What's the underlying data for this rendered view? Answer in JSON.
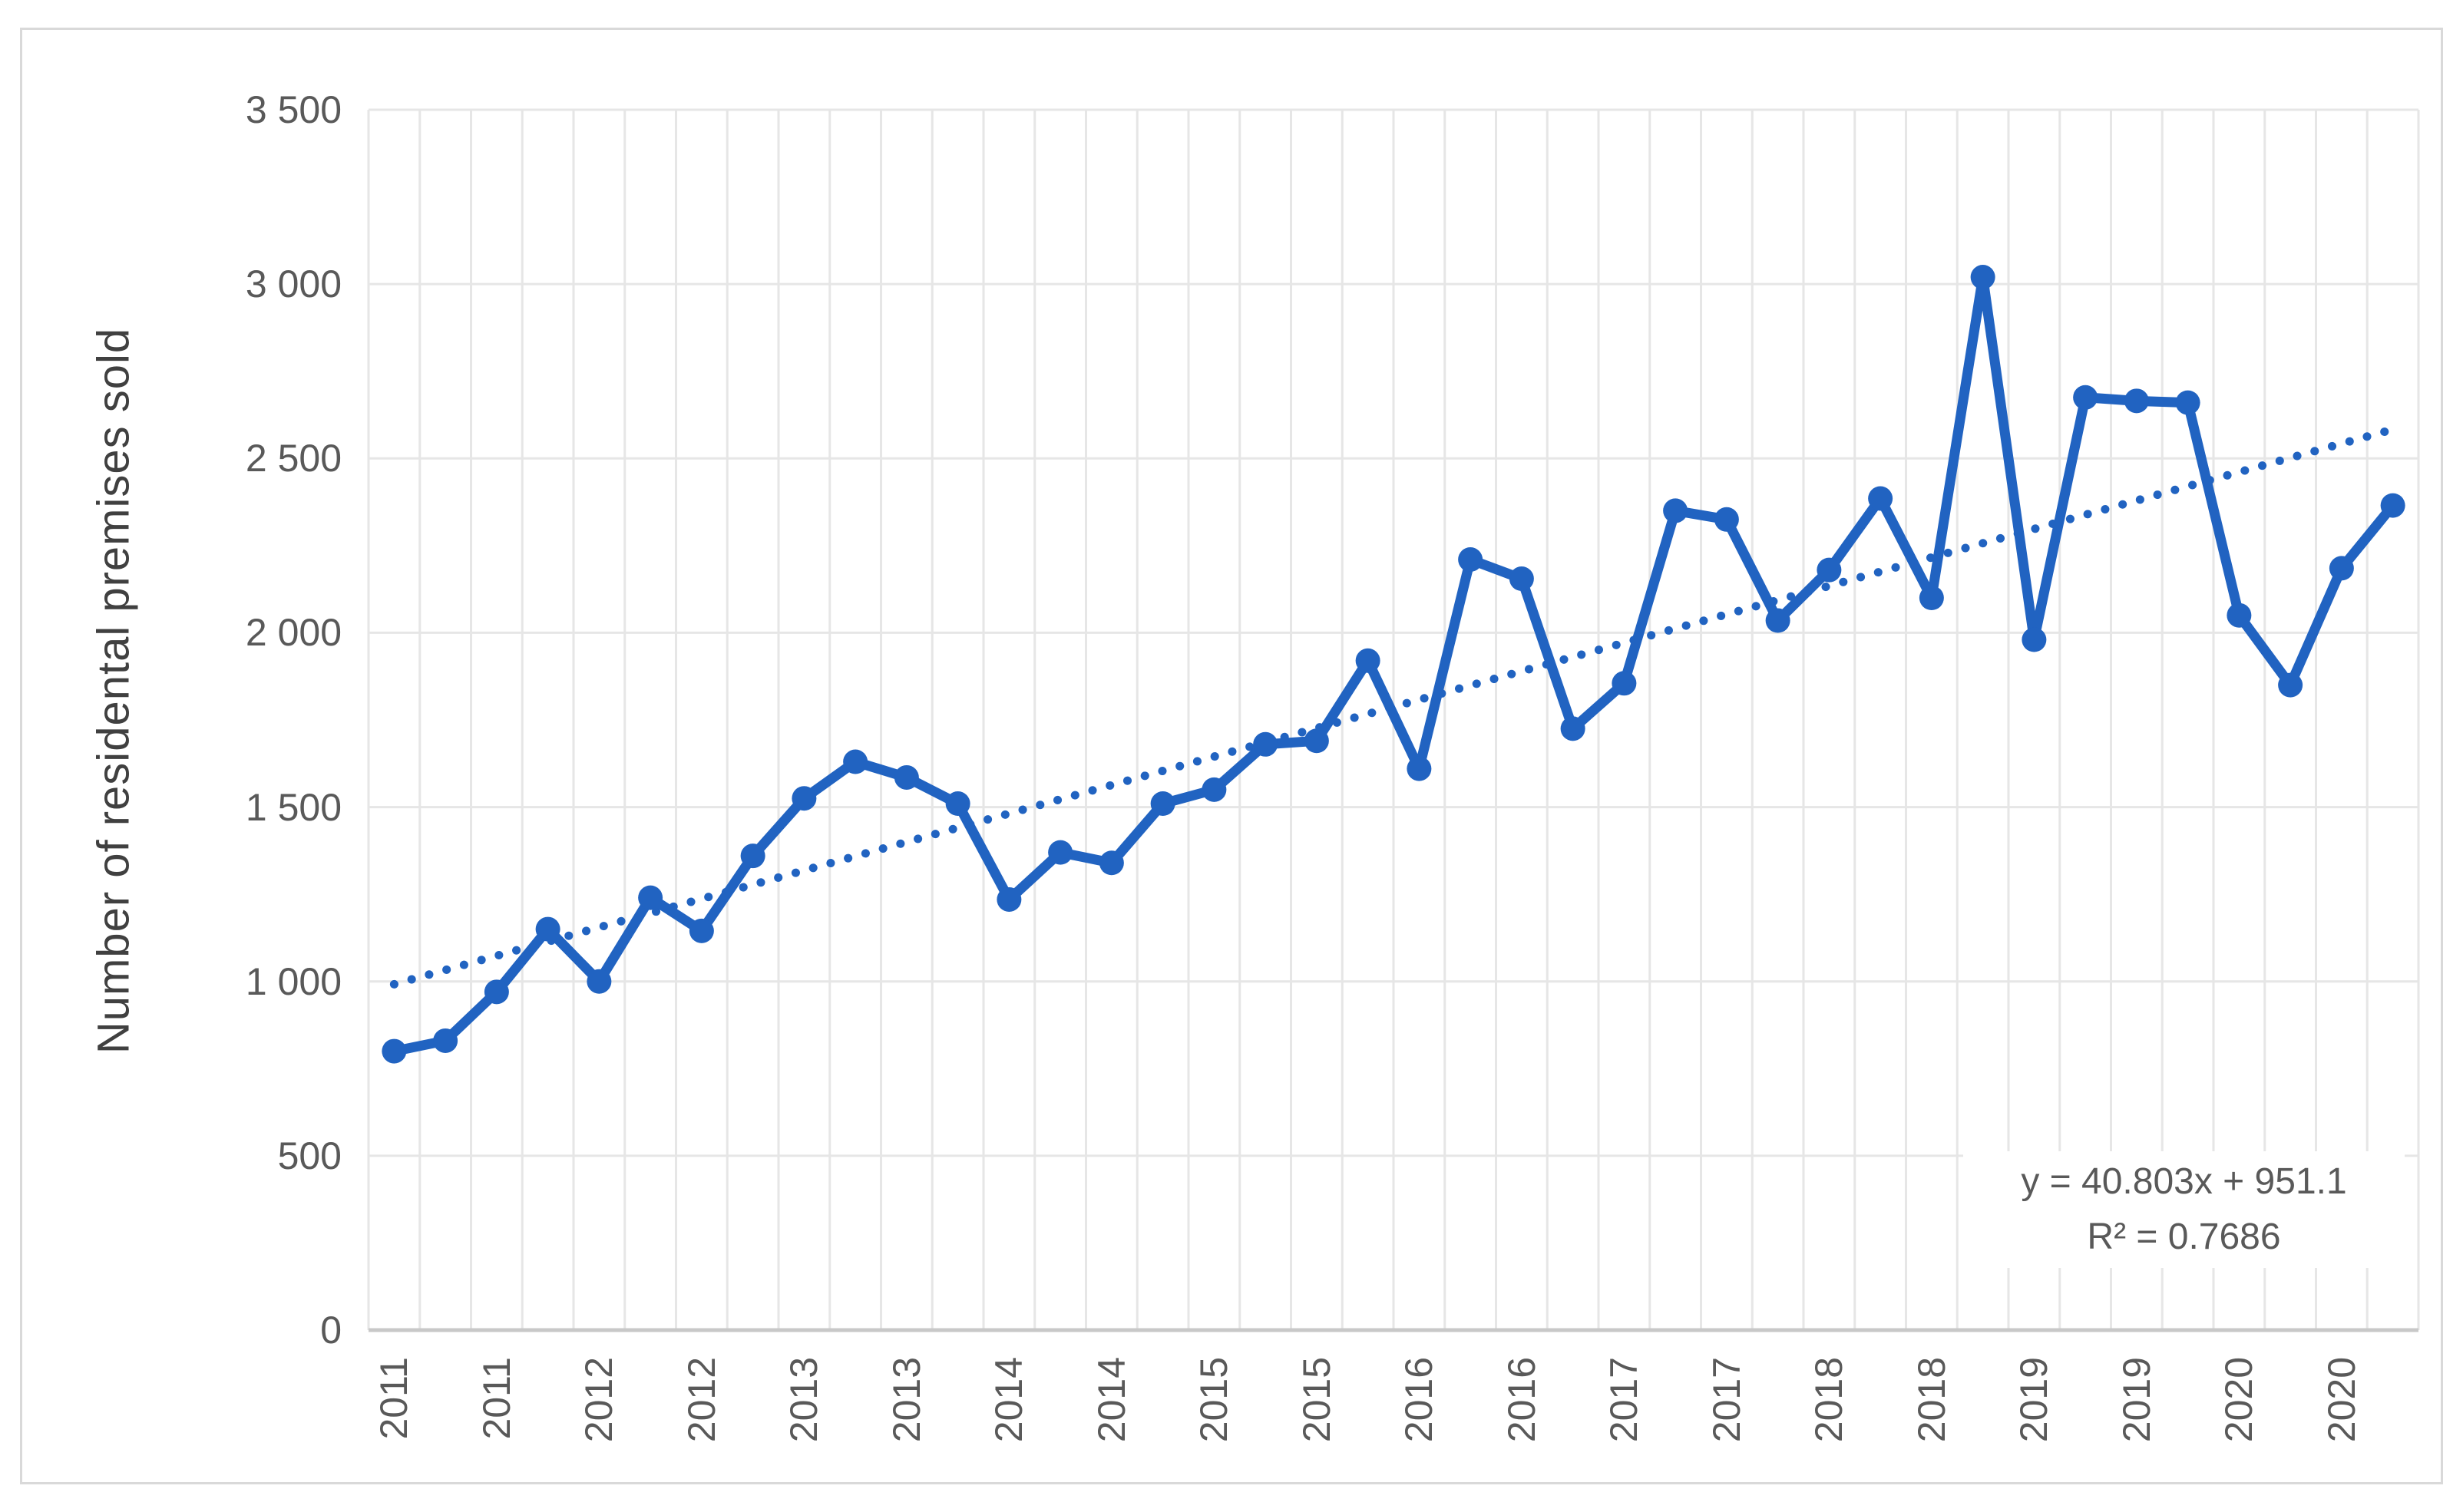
{
  "figure": {
    "background_color": "#ffffff",
    "border_color": "#d9d9d9"
  },
  "axes": {
    "y_title": "Number of residental premises sold",
    "y_tick_labels": [
      "0",
      "500",
      "1 000",
      "1 500",
      "2 000",
      "2 500",
      "3 000",
      "3 500"
    ],
    "x_tick_labels": [
      "2011",
      "2011",
      "2012",
      "2012",
      "2013",
      "2013",
      "2014",
      "2014",
      "2015",
      "2015",
      "2016",
      "2016",
      "2017",
      "2017",
      "2018",
      "2018",
      "2019",
      "2019",
      "2020",
      "2020"
    ]
  },
  "annotation": {
    "equation": "y = 40.803x + 951.1",
    "r_squared": "R² = 0.7686"
  },
  "chart_data": {
    "type": "line",
    "title": "",
    "xlabel": "",
    "ylabel": "Number of residental premises sold",
    "ylim": [
      0,
      3500
    ],
    "y_tick_step": 500,
    "grid": true,
    "legend": "none",
    "x_label_note": "quarterly data 2011Q1–2020Q4; year label shown under Q1 and Q3 of each year",
    "categories_years": [
      "2011",
      "2011",
      "2012",
      "2012",
      "2013",
      "2013",
      "2014",
      "2014",
      "2015",
      "2015",
      "2016",
      "2016",
      "2017",
      "2017",
      "2018",
      "2018",
      "2019",
      "2019",
      "2020",
      "2020"
    ],
    "series": [
      {
        "name": "Number of residental premises sold",
        "values": [
          800,
          830,
          970,
          1150,
          1000,
          1240,
          1145,
          1360,
          1525,
          1630,
          1585,
          1510,
          1235,
          1370,
          1340,
          1510,
          1550,
          1680,
          1690,
          1920,
          1610,
          2210,
          2155,
          1725,
          1855,
          2350,
          2325,
          2035,
          2180,
          2385,
          2100,
          3020,
          1980,
          2675,
          2665,
          2660,
          2050,
          1850,
          2185,
          2365
        ]
      }
    ],
    "trendline": {
      "type": "linear",
      "slope": 40.803,
      "intercept": 951.1,
      "equation": "y = 40.803x + 951.1",
      "r2": 0.7686,
      "style": "dotted"
    },
    "colors": {
      "series": "#2163c1",
      "trendline": "#2163c1",
      "gridline": "#e6e6e6",
      "axis_line": "#c8c8c8",
      "tick_text": "#595959"
    }
  }
}
